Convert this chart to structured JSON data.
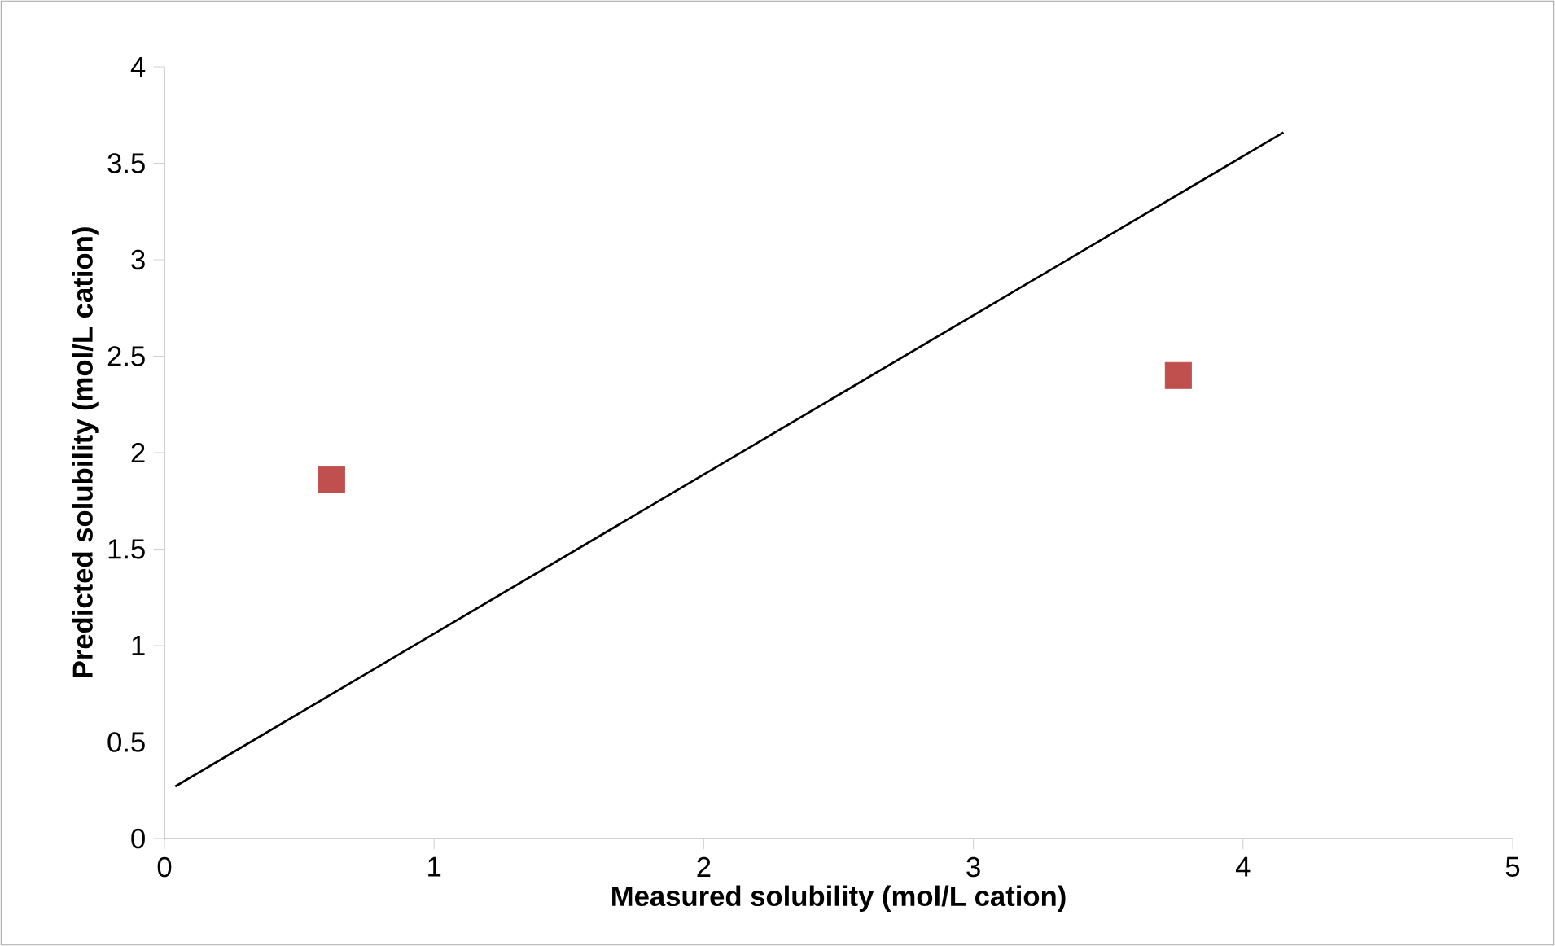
{
  "chart_data": {
    "type": "scatter",
    "xlabel": "Measured solubility (mol/L cation)",
    "ylabel": "Predicted solubility (mol/L cation)",
    "xlim": [
      0,
      5
    ],
    "ylim": [
      0,
      4
    ],
    "xticks": [
      0,
      1,
      2,
      3,
      4,
      5
    ],
    "yticks": [
      0,
      0.5,
      1,
      1.5,
      2,
      2.5,
      3,
      3.5,
      4
    ],
    "grid": false,
    "series": [
      {
        "color": "#c0504d",
        "marker": "square",
        "x": [
          0.62,
          3.76
        ],
        "values": [
          1.86,
          2.4
        ]
      },
      {
        "type": "line",
        "color": "#000000",
        "marker": "none",
        "x": [
          0.04,
          4.15
        ],
        "values": [
          0.27,
          3.66
        ]
      }
    ]
  }
}
